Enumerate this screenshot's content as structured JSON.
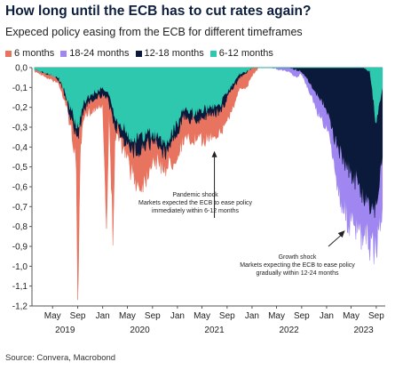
{
  "chart_data": {
    "type": "area",
    "title": "How long until the ECB has to cut rates again?",
    "subtitle": "Expeced policy easing from the ECB for different timeframes",
    "source": "Source: Convera, Macrobond",
    "ylim": [
      -1.2,
      0.0
    ],
    "yticks": [
      "0,0",
      "-0,1",
      "-0,2",
      "-0,3",
      "-0,4",
      "-0,5",
      "-0,6",
      "-0,7",
      "-0,8",
      "-0,9",
      "-1,0",
      "-1,1",
      "-1,2"
    ],
    "xticks": [
      {
        "date": "2019-05",
        "label": "May"
      },
      {
        "date": "2019-09",
        "label": "Sep"
      },
      {
        "date": "2020-01",
        "label": "Jan"
      },
      {
        "date": "2020-05",
        "label": "May"
      },
      {
        "date": "2020-09",
        "label": "Sep"
      },
      {
        "date": "2021-01",
        "label": "Jan"
      },
      {
        "date": "2021-05",
        "label": "May"
      },
      {
        "date": "2021-09",
        "label": "Sep"
      },
      {
        "date": "2022-01",
        "label": "Jan"
      },
      {
        "date": "2022-05",
        "label": "May"
      },
      {
        "date": "2022-09",
        "label": "Sep"
      },
      {
        "date": "2023-01",
        "label": "Jan"
      },
      {
        "date": "2023-05",
        "label": "May"
      },
      {
        "date": "2023-09",
        "label": "Sep"
      }
    ],
    "years": [
      {
        "date": "2019-07",
        "label": "2019"
      },
      {
        "date": "2020-07",
        "label": "2020"
      },
      {
        "date": "2021-07",
        "label": "2021"
      },
      {
        "date": "2022-07",
        "label": "2022"
      },
      {
        "date": "2023-07",
        "label": "2023"
      }
    ],
    "grid": false,
    "legend_position": "top-left",
    "series": [
      {
        "name": "6 months",
        "color": "#e8735f",
        "points": [
          [
            "2019-02",
            -0.02
          ],
          [
            "2019-03",
            -0.03
          ],
          [
            "2019-04",
            -0.05
          ],
          [
            "2019-05",
            -0.06
          ],
          [
            "2019-06",
            -0.08
          ],
          [
            "2019-07",
            -0.17
          ],
          [
            "2019-08",
            -0.31
          ],
          [
            "2019-08-25",
            -0.5
          ],
          [
            "2019-09",
            -1.12
          ],
          [
            "2019-09-15",
            -0.42
          ],
          [
            "2019-10",
            -0.26
          ],
          [
            "2019-11",
            -0.22
          ],
          [
            "2019-12",
            -0.2
          ],
          [
            "2020-01",
            -0.18
          ],
          [
            "2020-01-20",
            -0.8
          ],
          [
            "2020-02",
            -0.22
          ],
          [
            "2020-02-20",
            -0.84
          ],
          [
            "2020-03",
            -0.35
          ],
          [
            "2020-04",
            -0.38
          ],
          [
            "2020-05",
            -0.46
          ],
          [
            "2020-06",
            -0.55
          ],
          [
            "2020-07",
            -0.6
          ],
          [
            "2020-08",
            -0.55
          ],
          [
            "2020-09",
            -0.45
          ],
          [
            "2020-10",
            -0.48
          ],
          [
            "2020-11",
            -0.5
          ],
          [
            "2020-12",
            -0.48
          ],
          [
            "2021-01",
            -0.43
          ],
          [
            "2021-02",
            -0.35
          ],
          [
            "2021-03",
            -0.37
          ],
          [
            "2021-04",
            -0.36
          ],
          [
            "2021-05",
            -0.36
          ],
          [
            "2021-06",
            -0.35
          ],
          [
            "2021-07",
            -0.33
          ],
          [
            "2021-08",
            -0.33
          ],
          [
            "2021-09",
            -0.26
          ],
          [
            "2021-10",
            -0.2
          ],
          [
            "2021-11",
            -0.11
          ],
          [
            "2021-12",
            -0.1
          ],
          [
            "2022-01",
            -0.04
          ],
          [
            "2022-02",
            0.0
          ]
        ]
      },
      {
        "name": "18-24 months",
        "color": "#9f86f0",
        "points": [
          [
            "2022-02",
            0.0
          ],
          [
            "2022-04",
            0.0
          ],
          [
            "2022-07",
            -0.02
          ],
          [
            "2022-08",
            -0.05
          ],
          [
            "2022-09",
            -0.03
          ],
          [
            "2022-10",
            -0.1
          ],
          [
            "2022-11",
            -0.18
          ],
          [
            "2022-12",
            -0.25
          ],
          [
            "2023-01",
            -0.3
          ],
          [
            "2023-02",
            -0.45
          ],
          [
            "2023-03",
            -0.62
          ],
          [
            "2023-04",
            -0.72
          ],
          [
            "2023-05",
            -0.8
          ],
          [
            "2023-06",
            -0.82
          ],
          [
            "2023-07",
            -0.86
          ],
          [
            "2023-08",
            -0.88
          ],
          [
            "2023-09",
            -0.9
          ],
          [
            "2023-10",
            -0.7
          ]
        ]
      },
      {
        "name": "12-18 months",
        "color": "#0b1a3a",
        "points": [
          [
            "2019-02",
            -0.01
          ],
          [
            "2019-03",
            -0.02
          ],
          [
            "2019-04",
            -0.03
          ],
          [
            "2019-05",
            -0.04
          ],
          [
            "2019-06",
            -0.06
          ],
          [
            "2019-07",
            -0.14
          ],
          [
            "2019-08",
            -0.26
          ],
          [
            "2019-09",
            -0.35
          ],
          [
            "2019-10",
            -0.2
          ],
          [
            "2019-11",
            -0.17
          ],
          [
            "2019-12",
            -0.15
          ],
          [
            "2020-01",
            -0.14
          ],
          [
            "2020-02",
            -0.17
          ],
          [
            "2020-03",
            -0.3
          ],
          [
            "2020-04",
            -0.33
          ],
          [
            "2020-05",
            -0.4
          ],
          [
            "2020-06",
            -0.42
          ],
          [
            "2020-07",
            -0.4
          ],
          [
            "2020-08",
            -0.38
          ],
          [
            "2020-09",
            -0.38
          ],
          [
            "2020-10",
            -0.4
          ],
          [
            "2020-11",
            -0.42
          ],
          [
            "2020-12",
            -0.38
          ],
          [
            "2021-01",
            -0.32
          ],
          [
            "2021-02",
            -0.24
          ],
          [
            "2021-03",
            -0.26
          ],
          [
            "2021-04",
            -0.26
          ],
          [
            "2021-05",
            -0.25
          ],
          [
            "2021-06",
            -0.24
          ],
          [
            "2021-07",
            -0.23
          ],
          [
            "2021-08",
            -0.22
          ],
          [
            "2021-09",
            -0.15
          ],
          [
            "2021-10",
            -0.1
          ],
          [
            "2021-11",
            -0.05
          ],
          [
            "2021-12",
            -0.03
          ],
          [
            "2022-01",
            0.0
          ],
          [
            "2022-07",
            0.0
          ],
          [
            "2022-09",
            -0.02
          ],
          [
            "2022-10",
            -0.06
          ],
          [
            "2022-11",
            -0.12
          ],
          [
            "2022-12",
            -0.16
          ],
          [
            "2023-01",
            -0.2
          ],
          [
            "2023-02",
            -0.32
          ],
          [
            "2023-03",
            -0.42
          ],
          [
            "2023-04",
            -0.48
          ],
          [
            "2023-05",
            -0.52
          ],
          [
            "2023-06",
            -0.58
          ],
          [
            "2023-07",
            -0.65
          ],
          [
            "2023-08",
            -0.68
          ],
          [
            "2023-09",
            -0.7
          ],
          [
            "2023-10",
            -0.45
          ]
        ]
      },
      {
        "name": "6-12 months",
        "color": "#2dc8ae",
        "points": [
          [
            "2019-02",
            -0.01
          ],
          [
            "2019-03",
            -0.02
          ],
          [
            "2019-04",
            -0.03
          ],
          [
            "2019-05",
            -0.04
          ],
          [
            "2019-06",
            -0.05
          ],
          [
            "2019-07",
            -0.12
          ],
          [
            "2019-08",
            -0.22
          ],
          [
            "2019-09",
            -0.3
          ],
          [
            "2019-10",
            -0.17
          ],
          [
            "2019-11",
            -0.14
          ],
          [
            "2019-12",
            -0.12
          ],
          [
            "2020-01",
            -0.1
          ],
          [
            "2020-02",
            -0.14
          ],
          [
            "2020-03",
            -0.25
          ],
          [
            "2020-04",
            -0.28
          ],
          [
            "2020-05",
            -0.33
          ],
          [
            "2020-06",
            -0.36
          ],
          [
            "2020-07",
            -0.35
          ],
          [
            "2020-08",
            -0.33
          ],
          [
            "2020-09",
            -0.33
          ],
          [
            "2020-10",
            -0.35
          ],
          [
            "2020-11",
            -0.37
          ],
          [
            "2020-12",
            -0.33
          ],
          [
            "2021-01",
            -0.28
          ],
          [
            "2021-02",
            -0.2
          ],
          [
            "2021-03",
            -0.22
          ],
          [
            "2021-04",
            -0.22
          ],
          [
            "2021-05",
            -0.21
          ],
          [
            "2021-06",
            -0.2
          ],
          [
            "2021-07",
            -0.19
          ],
          [
            "2021-08",
            -0.18
          ],
          [
            "2021-09",
            -0.12
          ],
          [
            "2021-10",
            -0.08
          ],
          [
            "2021-11",
            -0.03
          ],
          [
            "2021-12",
            -0.02
          ],
          [
            "2022-01",
            0.0
          ],
          [
            "2023-07",
            0.0
          ],
          [
            "2023-08",
            -0.02
          ],
          [
            "2023-09",
            -0.28
          ],
          [
            "2023-10",
            -0.1
          ]
        ]
      }
    ],
    "annotations": [
      {
        "lines": [
          "Pandemic shock",
          "Markets expected the ECB to ease policy",
          "immediately within 6-12 months"
        ],
        "arrow_to": [
          "2021-07",
          -0.42
        ]
      },
      {
        "lines": [
          "Growth shock",
          "Markets expecting the ECB to ease policy",
          "gradually within 12-24 months"
        ],
        "arrow_to": [
          "2023-04",
          -0.82
        ]
      }
    ]
  }
}
